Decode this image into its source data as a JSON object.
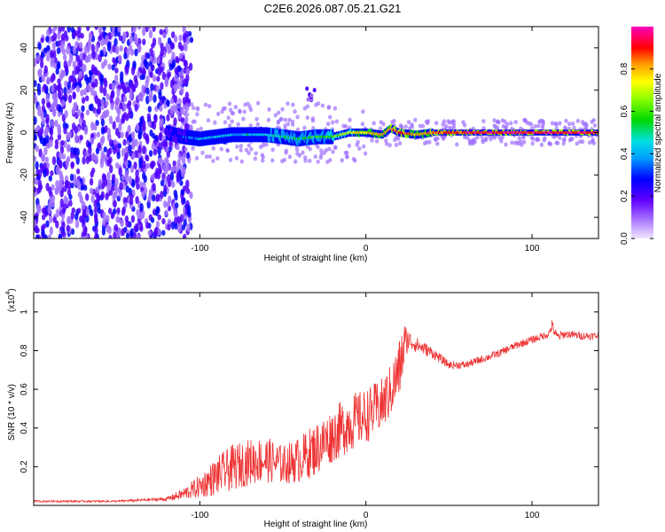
{
  "title": "C2E6.2026.087.05.21.G21",
  "chart_data": [
    {
      "type": "heatmap",
      "xlabel": "Height of straight line (km)",
      "ylabel": "Frequency (Hz)",
      "xlim": [
        -200,
        140
      ],
      "ylim": [
        -50,
        50
      ],
      "xticks": [
        -100,
        0,
        100
      ],
      "yticks": [
        -40,
        -20,
        0,
        20,
        40
      ],
      "colorbar": {
        "label": "Normalized spectral amplitude",
        "ticks": [
          0.0,
          0.2,
          0.4,
          0.6,
          0.8
        ],
        "range": [
          0,
          1
        ],
        "colors": [
          "#f0e0ff",
          "#a070ff",
          "#5000ff",
          "#0000ff",
          "#00a0ff",
          "#00e0e0",
          "#00e000",
          "#90ff00",
          "#ffff00",
          "#ffa000",
          "#ff0000",
          "#ff00a0"
        ]
      },
      "ridge": [
        {
          "x": -120,
          "y": 0,
          "amp": 0.25
        },
        {
          "x": -110,
          "y": -2,
          "amp": 0.3
        },
        {
          "x": -100,
          "y": -3,
          "amp": 0.4
        },
        {
          "x": -90,
          "y": -2,
          "amp": 0.45
        },
        {
          "x": -80,
          "y": -1,
          "amp": 0.4
        },
        {
          "x": -70,
          "y": -1,
          "amp": 0.45
        },
        {
          "x": -60,
          "y": -1,
          "amp": 0.45
        },
        {
          "x": -50,
          "y": -2,
          "amp": 0.5
        },
        {
          "x": -40,
          "y": -3,
          "amp": 0.5
        },
        {
          "x": -30,
          "y": -2,
          "amp": 0.55
        },
        {
          "x": -20,
          "y": -2,
          "amp": 0.6
        },
        {
          "x": -10,
          "y": 0,
          "amp": 0.7
        },
        {
          "x": 0,
          "y": 0,
          "amp": 0.75
        },
        {
          "x": 10,
          "y": -1,
          "amp": 0.8
        },
        {
          "x": 15,
          "y": 2,
          "amp": 0.85
        },
        {
          "x": 20,
          "y": 0,
          "amp": 0.9
        },
        {
          "x": 30,
          "y": -1,
          "amp": 0.8
        },
        {
          "x": 40,
          "y": 0,
          "amp": 0.85
        },
        {
          "x": 60,
          "y": 0,
          "amp": 0.9
        },
        {
          "x": 80,
          "y": 0,
          "amp": 0.95
        },
        {
          "x": 100,
          "y": 0,
          "amp": 0.95
        },
        {
          "x": 120,
          "y": 0,
          "amp": 0.95
        },
        {
          "x": 140,
          "y": 0,
          "amp": 0.95
        }
      ]
    },
    {
      "type": "line",
      "xlabel": "Height of straight line (km)",
      "ylabel": "SNR (10 * v/v)",
      "yscale_label": "(x10",
      "yscale_exp": "4",
      "xlim": [
        -200,
        140
      ],
      "ylim": [
        0,
        1.1
      ],
      "xticks": [
        -100,
        0,
        100
      ],
      "yticks": [
        0.2,
        0.4,
        0.6,
        0.8,
        1.0
      ],
      "color": "#ee3333",
      "series": [
        {
          "name": "SNR",
          "x": [
            -200,
            -180,
            -150,
            -120,
            -110,
            -100,
            -90,
            -80,
            -70,
            -60,
            -50,
            -40,
            -30,
            -20,
            -10,
            0,
            10,
            15,
            20,
            23,
            25,
            30,
            40,
            50,
            60,
            70,
            80,
            90,
            100,
            110,
            112,
            115,
            120,
            130,
            140
          ],
          "y": [
            0.02,
            0.02,
            0.02,
            0.03,
            0.05,
            0.08,
            0.12,
            0.16,
            0.19,
            0.2,
            0.18,
            0.2,
            0.25,
            0.32,
            0.38,
            0.42,
            0.48,
            0.55,
            0.65,
            0.78,
            0.84,
            0.82,
            0.78,
            0.72,
            0.72,
            0.75,
            0.78,
            0.82,
            0.85,
            0.88,
            0.92,
            0.86,
            0.88,
            0.87,
            0.87
          ],
          "noise": [
            0.005,
            0.005,
            0.005,
            0.01,
            0.03,
            0.06,
            0.1,
            0.12,
            0.12,
            0.12,
            0.1,
            0.12,
            0.14,
            0.14,
            0.15,
            0.14,
            0.14,
            0.14,
            0.16,
            0.14,
            0.06,
            0.04,
            0.03,
            0.02,
            0.02,
            0.02,
            0.02,
            0.02,
            0.02,
            0.02,
            0.03,
            0.03,
            0.02,
            0.02,
            0.02
          ]
        }
      ]
    }
  ]
}
